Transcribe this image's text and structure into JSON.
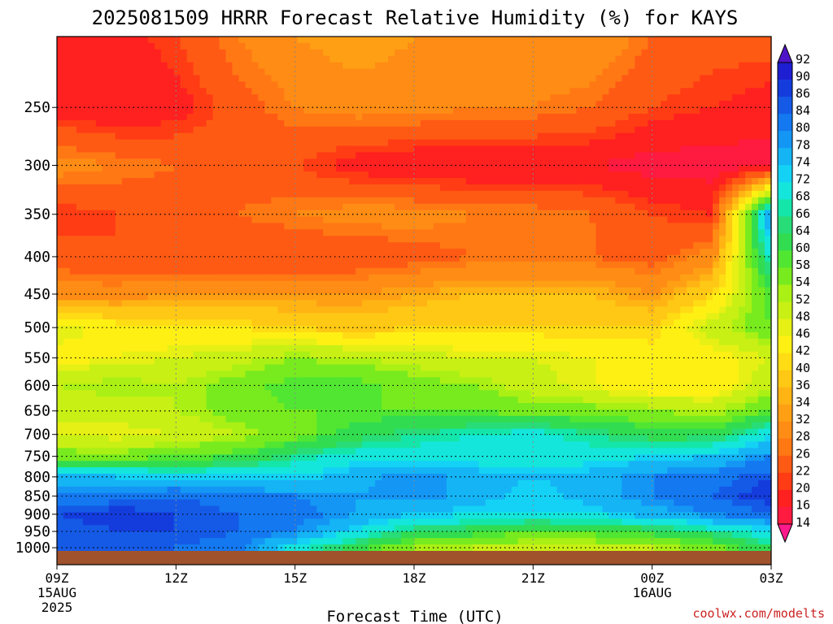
{
  "chart_data": {
    "type": "heatmap",
    "title": "2025081509 HRRR Forecast Relative Humidity (%) for KAYS",
    "xlabel": "Forecast Time (UTC)",
    "ylabel": "",
    "x_ticks": [
      {
        "hour": 0,
        "label": "09Z",
        "sub": [
          "15AUG",
          "2025"
        ]
      },
      {
        "hour": 3,
        "label": "12Z",
        "sub": []
      },
      {
        "hour": 6,
        "label": "15Z",
        "sub": []
      },
      {
        "hour": 9,
        "label": "18Z",
        "sub": []
      },
      {
        "hour": 12,
        "label": "21Z",
        "sub": []
      },
      {
        "hour": 15,
        "label": "00Z",
        "sub": [
          "16AUG"
        ]
      },
      {
        "hour": 18,
        "label": "03Z",
        "sub": []
      }
    ],
    "xlim": [
      0,
      18
    ],
    "y_ticks": [
      250,
      300,
      350,
      400,
      450,
      500,
      550,
      600,
      650,
      700,
      750,
      800,
      850,
      900,
      950,
      1000
    ],
    "ylim": [
      200,
      1010
    ],
    "y_scale": "log-pressure (inverted)",
    "grid": true,
    "colorbar": {
      "levels": [
        14,
        16,
        20,
        22,
        26,
        28,
        32,
        34,
        36,
        40,
        42,
        46,
        48,
        52,
        54,
        58,
        60,
        64,
        66,
        68,
        72,
        74,
        78,
        80,
        84,
        86,
        90,
        92
      ],
      "colors": [
        "#ff1a8c",
        "#ff1a40",
        "#ff2020",
        "#ff3c14",
        "#ff5a14",
        "#ff7814",
        "#ff8c14",
        "#ffa014",
        "#ffb414",
        "#ffc814",
        "#ffdc14",
        "#fff014",
        "#e6f014",
        "#c8f014",
        "#aaf014",
        "#78eb1e",
        "#50e632",
        "#32dc50",
        "#28dc78",
        "#14e6aa",
        "#14e6dc",
        "#14d2f5",
        "#14b4f5",
        "#1496f5",
        "#1478f0",
        "#145ae6",
        "#143cdc",
        "#1e1ed2",
        "#4616c8"
      ],
      "over_color": "#5014c8",
      "under_color": "#ff1a8c",
      "location": "right"
    },
    "pressure_levels": [
      200,
      250,
      300,
      350,
      400,
      450,
      500,
      550,
      600,
      650,
      700,
      750,
      800,
      850,
      900,
      950,
      1000
    ],
    "hours": [
      0,
      1.5,
      3,
      4.5,
      6,
      7.5,
      9,
      10.5,
      12,
      13.5,
      15,
      16.5,
      18
    ],
    "rh": [
      [
        20,
        18,
        22,
        28,
        32,
        34,
        32,
        32,
        32,
        32,
        26,
        24,
        24
      ],
      [
        18,
        16,
        18,
        24,
        28,
        30,
        30,
        28,
        28,
        26,
        22,
        20,
        18
      ],
      [
        30,
        28,
        26,
        24,
        22,
        18,
        16,
        16,
        16,
        16,
        14,
        14,
        14
      ],
      [
        20,
        22,
        24,
        26,
        28,
        30,
        30,
        28,
        28,
        26,
        22,
        20,
        80
      ],
      [
        24,
        22,
        22,
        22,
        22,
        22,
        24,
        26,
        26,
        26,
        24,
        30,
        70
      ],
      [
        30,
        30,
        32,
        32,
        32,
        32,
        34,
        36,
        36,
        36,
        32,
        40,
        60
      ],
      [
        48,
        44,
        42,
        42,
        40,
        38,
        40,
        40,
        40,
        40,
        40,
        50,
        58
      ],
      [
        44,
        46,
        48,
        50,
        54,
        52,
        50,
        48,
        48,
        46,
        44,
        44,
        48
      ],
      [
        52,
        54,
        52,
        56,
        60,
        60,
        56,
        54,
        50,
        46,
        42,
        42,
        52
      ],
      [
        48,
        50,
        52,
        56,
        58,
        58,
        58,
        58,
        56,
        56,
        54,
        52,
        58
      ],
      [
        48,
        46,
        48,
        52,
        56,
        62,
        66,
        68,
        70,
        66,
        62,
        62,
        72
      ],
      [
        56,
        56,
        58,
        60,
        66,
        70,
        70,
        70,
        68,
        70,
        72,
        74,
        80
      ],
      [
        74,
        74,
        72,
        72,
        72,
        76,
        80,
        76,
        74,
        76,
        80,
        82,
        86
      ],
      [
        80,
        82,
        84,
        82,
        80,
        78,
        80,
        76,
        72,
        76,
        80,
        84,
        88
      ],
      [
        86,
        88,
        86,
        84,
        82,
        78,
        74,
        72,
        72,
        72,
        76,
        80,
        84
      ],
      [
        84,
        86,
        86,
        84,
        80,
        72,
        64,
        62,
        58,
        60,
        62,
        66,
        72
      ],
      [
        84,
        86,
        84,
        82,
        70,
        62,
        54,
        52,
        50,
        50,
        52,
        56,
        64
      ]
    ]
  },
  "credit": "coolwx.com/modelts"
}
